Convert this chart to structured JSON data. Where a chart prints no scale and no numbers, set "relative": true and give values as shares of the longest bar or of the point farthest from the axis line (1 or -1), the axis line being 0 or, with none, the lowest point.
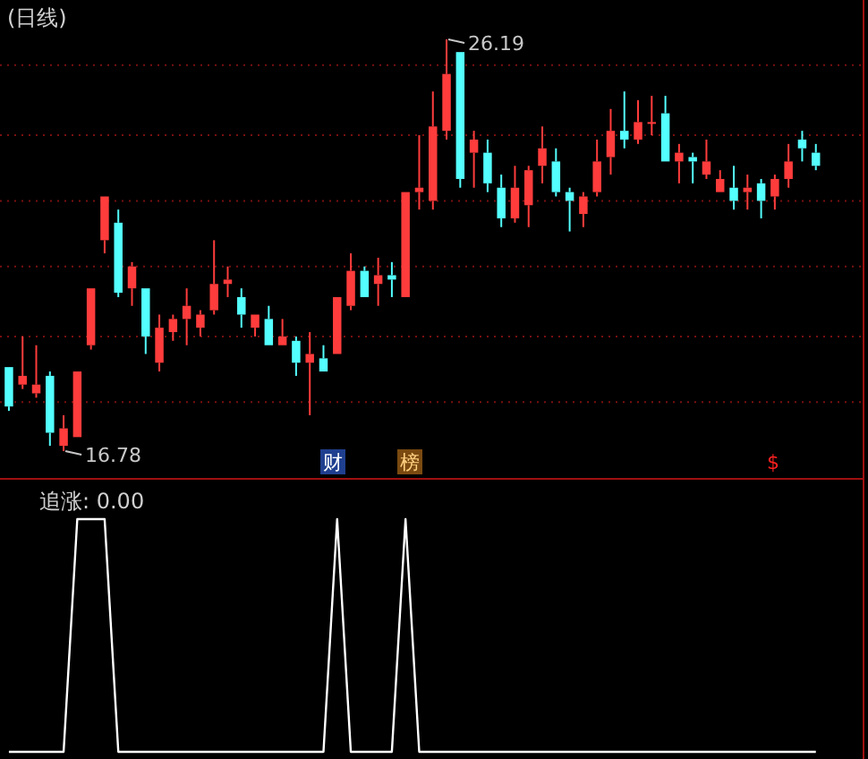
{
  "chart_data": [
    {
      "type": "candlestick",
      "title": "(日线)",
      "categories": [
        null,
        null,
        null,
        null,
        null,
        null,
        null,
        null,
        null,
        null,
        null,
        null,
        null,
        null,
        null,
        null,
        null,
        null,
        null,
        null,
        null,
        null,
        null,
        null,
        null,
        null,
        null,
        null,
        null,
        null,
        null,
        null,
        null,
        null,
        null,
        null,
        null,
        null,
        null,
        null,
        null,
        null,
        null,
        null,
        null,
        null,
        null,
        null,
        null,
        null,
        null,
        null,
        null,
        null,
        null,
        null,
        null,
        null,
        null,
        null
      ],
      "ohlc": [
        [
          18.7,
          18.7,
          17.7,
          17.8
        ],
        [
          18.3,
          19.4,
          18.2,
          18.5
        ],
        [
          18.1,
          19.2,
          18.0,
          18.3
        ],
        [
          18.5,
          18.6,
          16.9,
          17.2
        ],
        [
          16.9,
          17.6,
          16.78,
          17.3
        ],
        [
          17.1,
          18.6,
          17.1,
          18.6
        ],
        [
          19.2,
          20.5,
          19.1,
          20.5
        ],
        [
          21.6,
          22.6,
          21.3,
          22.6
        ],
        [
          22.0,
          22.3,
          20.3,
          20.4
        ],
        [
          20.5,
          21.1,
          20.1,
          21.0
        ],
        [
          20.5,
          20.5,
          19.0,
          19.4
        ],
        [
          18.8,
          19.9,
          18.6,
          19.6
        ],
        [
          19.5,
          19.9,
          19.3,
          19.8
        ],
        [
          19.8,
          20.5,
          19.2,
          20.1
        ],
        [
          19.6,
          20.0,
          19.4,
          19.9
        ],
        [
          20.0,
          21.6,
          19.9,
          20.6
        ],
        [
          20.6,
          21.0,
          20.3,
          20.7
        ],
        [
          20.3,
          20.5,
          19.6,
          19.9
        ],
        [
          19.6,
          19.9,
          19.4,
          19.9
        ],
        [
          19.8,
          20.1,
          19.2,
          19.2
        ],
        [
          19.2,
          19.8,
          19.2,
          19.4
        ],
        [
          19.3,
          19.4,
          18.5,
          18.8
        ],
        [
          18.8,
          19.5,
          17.6,
          19.0
        ],
        [
          18.9,
          19.2,
          18.6,
          18.6
        ],
        [
          19.0,
          20.3,
          19.0,
          20.3
        ],
        [
          20.1,
          21.3,
          20.0,
          20.9
        ],
        [
          20.9,
          21.0,
          20.3,
          20.3
        ],
        [
          20.6,
          21.2,
          20.1,
          20.8
        ],
        [
          20.8,
          21.1,
          20.3,
          20.7
        ],
        [
          20.3,
          22.7,
          20.3,
          22.7
        ],
        [
          22.7,
          24.0,
          22.3,
          22.8
        ],
        [
          22.5,
          25.0,
          22.3,
          24.2
        ],
        [
          24.1,
          26.19,
          23.9,
          25.4
        ],
        [
          25.9,
          25.9,
          22.8,
          23.0
        ],
        [
          23.6,
          24.1,
          22.8,
          23.9
        ],
        [
          23.6,
          23.9,
          22.7,
          22.9
        ],
        [
          22.8,
          23.1,
          21.9,
          22.1
        ],
        [
          22.1,
          23.3,
          22.0,
          22.8
        ],
        [
          22.4,
          23.3,
          21.9,
          23.2
        ],
        [
          23.3,
          24.2,
          22.9,
          23.7
        ],
        [
          23.4,
          23.7,
          22.6,
          22.7
        ],
        [
          22.7,
          22.8,
          21.8,
          22.5
        ],
        [
          22.2,
          22.7,
          21.9,
          22.6
        ],
        [
          22.7,
          23.9,
          22.6,
          23.4
        ],
        [
          23.5,
          24.6,
          23.1,
          24.1
        ],
        [
          24.1,
          25.0,
          23.7,
          23.9
        ],
        [
          23.9,
          24.8,
          23.8,
          24.3
        ],
        [
          24.3,
          24.9,
          24.0,
          24.3
        ],
        [
          24.5,
          24.9,
          23.4,
          23.4
        ],
        [
          23.4,
          23.8,
          22.9,
          23.6
        ],
        [
          23.5,
          23.6,
          22.9,
          23.4
        ],
        [
          23.1,
          23.9,
          23.0,
          23.4
        ],
        [
          22.7,
          23.2,
          22.7,
          23.0
        ],
        [
          22.8,
          23.3,
          22.3,
          22.5
        ],
        [
          22.7,
          23.1,
          22.3,
          22.8
        ],
        [
          22.9,
          23.0,
          22.1,
          22.5
        ],
        [
          22.6,
          23.1,
          22.3,
          23.0
        ],
        [
          23.0,
          23.8,
          22.8,
          23.4
        ],
        [
          23.9,
          24.1,
          23.4,
          23.7
        ],
        [
          23.6,
          23.8,
          23.2,
          23.3
        ]
      ],
      "yticks": [
        {
          "value": 25.6,
          "label": null
        },
        {
          "value": 24.0,
          "label": null
        },
        {
          "value": 22.5,
          "label": null
        },
        {
          "value": 21.0,
          "label": null
        },
        {
          "value": 19.4,
          "label": null
        },
        {
          "value": 17.9,
          "label": null
        }
      ],
      "grid": "y",
      "annotations": [
        "26.19",
        "16.78",
        "财",
        "榜",
        "$"
      ]
    },
    {
      "type": "line",
      "title": "追涨: 0.00",
      "categories": [
        null,
        null,
        null,
        null,
        null,
        null,
        null,
        null,
        null,
        null,
        null,
        null,
        null,
        null,
        null,
        null,
        null,
        null,
        null,
        null,
        null,
        null,
        null,
        null,
        null,
        null,
        null,
        null,
        null,
        null,
        null,
        null,
        null,
        null,
        null,
        null,
        null,
        null,
        null,
        null,
        null,
        null,
        null,
        null,
        null,
        null,
        null,
        null,
        null,
        null,
        null,
        null,
        null,
        null,
        null,
        null,
        null,
        null,
        null,
        null
      ],
      "relative": true,
      "series": [
        {
          "color": "#ffffff",
          "values": [
            0,
            0,
            0,
            0,
            0,
            1,
            1,
            1,
            0,
            0,
            0,
            0,
            0,
            0,
            0,
            0,
            0,
            0,
            0,
            0,
            0,
            0,
            0,
            0,
            1,
            0,
            0,
            0,
            0,
            1,
            0,
            0,
            0,
            0,
            0,
            0,
            0,
            0,
            0,
            0,
            0,
            0,
            0,
            0,
            0,
            0,
            0,
            0,
            0,
            0,
            0,
            0,
            0,
            0,
            0,
            0,
            0,
            0,
            0,
            0
          ]
        }
      ]
    }
  ]
}
